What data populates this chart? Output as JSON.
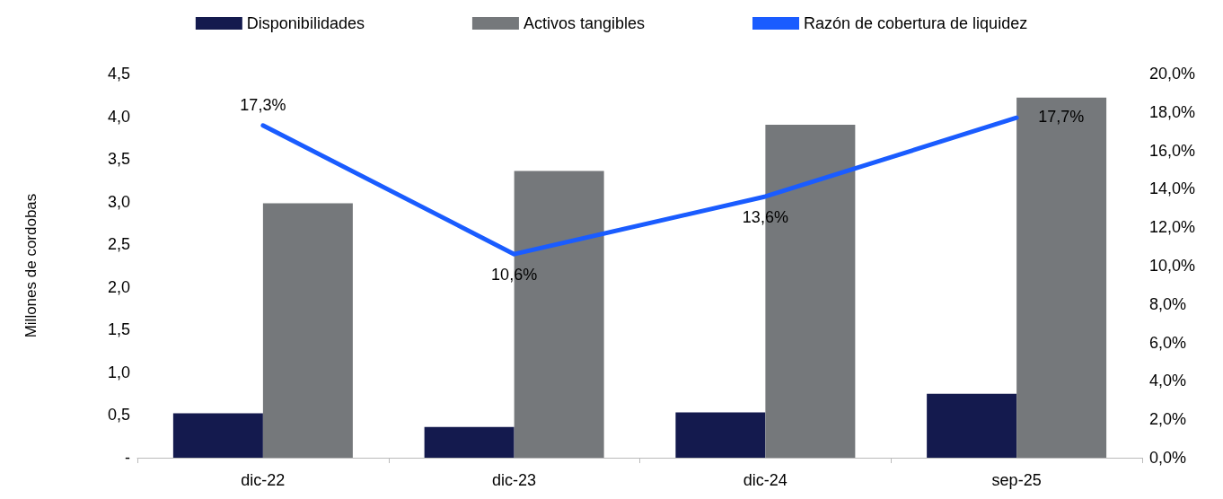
{
  "chart_data": {
    "type": "bar",
    "categories": [
      "dic-22",
      "dic-23",
      "dic-24",
      "sep-25"
    ],
    "ylabel": "Millones de cordobas",
    "series": [
      {
        "name": "Disponibilidades",
        "color": "#141a4e",
        "values": [
          0.52,
          0.36,
          0.53,
          0.75
        ]
      },
      {
        "name": "Activos tangibles",
        "color": "#75787b",
        "values": [
          2.98,
          3.36,
          3.9,
          4.22
        ]
      },
      {
        "name": "Razón de cobertura de liquidez",
        "type": "line",
        "axis": "y2",
        "color": "#1a5cff",
        "values": [
          17.3,
          10.6,
          13.6,
          17.7
        ],
        "value_labels": [
          "17,3%",
          "10,6%",
          "13,6%",
          "17,7%"
        ]
      }
    ],
    "ylim": [
      0,
      4.5
    ],
    "yticks": [
      {
        "value": 0,
        "label": "-"
      },
      {
        "value": 0.5,
        "label": "0,5"
      },
      {
        "value": 1,
        "label": "1,0"
      },
      {
        "value": 1.5,
        "label": "1,5"
      },
      {
        "value": 2,
        "label": "2,0"
      },
      {
        "value": 2.5,
        "label": "2,5"
      },
      {
        "value": 3,
        "label": "3,0"
      },
      {
        "value": 3.5,
        "label": "3,5"
      },
      {
        "value": 4,
        "label": "4,0"
      },
      {
        "value": 4.5,
        "label": "4,5"
      }
    ],
    "y2lim": [
      0,
      20
    ],
    "y2ticks": [
      {
        "value": 0,
        "label": "0,0%"
      },
      {
        "value": 2,
        "label": "2,0%"
      },
      {
        "value": 4,
        "label": "4,0%"
      },
      {
        "value": 6,
        "label": "6,0%"
      },
      {
        "value": 8,
        "label": "8,0%"
      },
      {
        "value": 10,
        "label": "10,0%"
      },
      {
        "value": 12,
        "label": "12,0%"
      },
      {
        "value": 14,
        "label": "14,0%"
      },
      {
        "value": 16,
        "label": "16,0%"
      },
      {
        "value": 18,
        "label": "18,0%"
      },
      {
        "value": 20,
        "label": "20,0%"
      }
    ],
    "legend": "top",
    "grid": false,
    "marker": "none"
  }
}
